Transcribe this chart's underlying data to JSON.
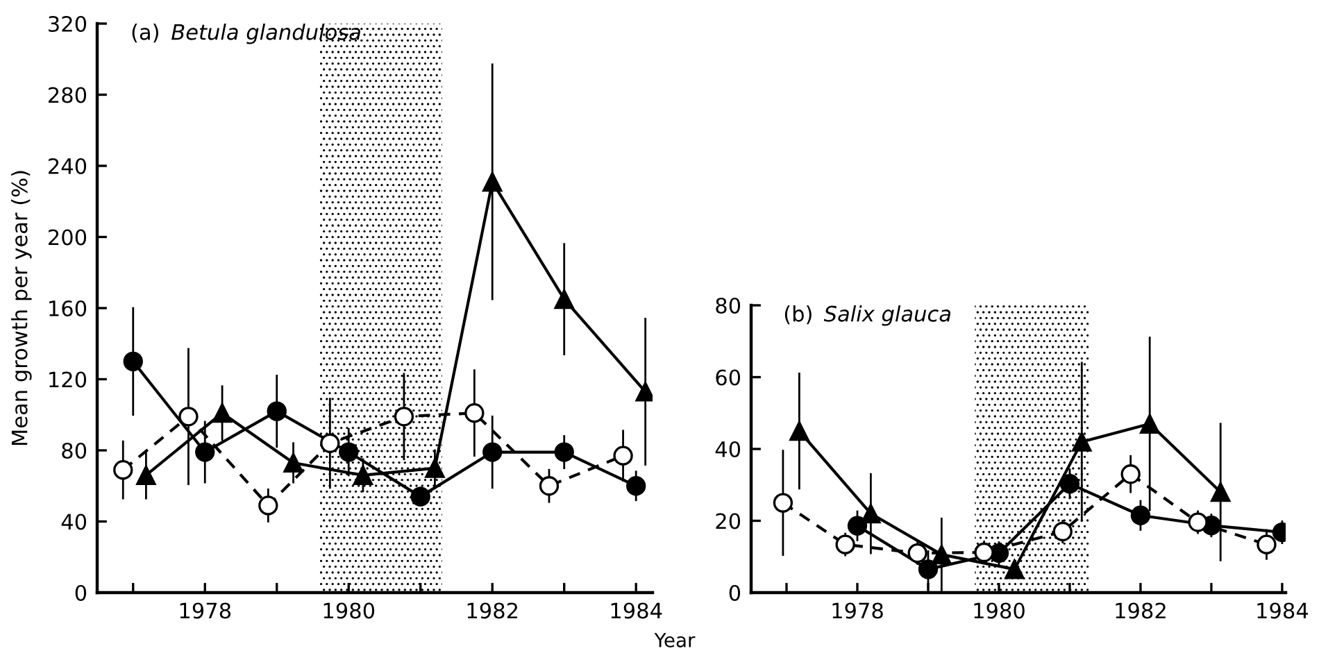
{
  "chart_data": [
    {
      "type": "line",
      "title": "(a) Betula glandulosa",
      "ylabel": "Mean growth per year (%)",
      "xlabel": "Year",
      "xlim": [
        1976.5,
        1984.23
      ],
      "ylim": [
        0,
        320
      ],
      "xticks": [
        {
          "value": 1977,
          "label": null
        },
        1978,
        {
          "value": 1979,
          "label": null
        },
        1980,
        {
          "value": 1981,
          "label": null
        },
        1982,
        {
          "value": 1983,
          "label": null
        },
        1984
      ],
      "yticks": [
        0,
        40,
        80,
        120,
        160,
        200,
        240,
        280,
        320
      ],
      "grid": false,
      "legend": false,
      "bands": [
        {
          "axis": "x",
          "from": 1979.6,
          "to": 1981.3,
          "color": "#000000"
        }
      ],
      "series": [
        {
          "color": "#000000",
          "marker": "circle",
          "line_style": "solid",
          "x": [
            1977,
            1978,
            1979,
            1980,
            1981,
            1982,
            1983,
            1984
          ],
          "values": [
            130,
            79,
            102,
            79,
            54,
            79,
            79,
            60
          ],
          "errors": [
            30,
            17,
            20,
            13,
            5,
            20,
            9,
            8
          ]
        },
        {
          "color": "#ffffff",
          "marker": "circle",
          "line_style": "dashed",
          "x": [
            1976.86,
            1977.77,
            1978.88,
            1979.74,
            1980.77,
            1981.75,
            1982.79,
            1983.82
          ],
          "values": [
            69,
            99,
            49,
            84,
            99,
            101,
            60,
            77
          ],
          "errors": [
            16,
            38,
            9,
            25,
            24,
            24,
            9,
            14
          ]
        },
        {
          "color": "#000000",
          "marker": "triangle",
          "line_style": "solid",
          "x": [
            1977.18,
            1978.24,
            1979.23,
            1980.2,
            1981.2,
            1982,
            1983,
            1984.13
          ],
          "values": [
            66,
            101,
            73,
            66,
            70,
            231,
            165,
            113
          ],
          "errors": [
            13,
            15,
            11,
            9,
            10,
            66,
            31,
            41
          ]
        }
      ]
    },
    {
      "type": "line",
      "title": "(b) Salix glauca",
      "xlim": [
        1976.5,
        1984.05
      ],
      "ylim": [
        0,
        80
      ],
      "xticks": [
        {
          "value": 1977,
          "label": null
        },
        1978,
        {
          "value": 1979,
          "label": null
        },
        1980,
        {
          "value": 1981,
          "label": null
        },
        1982,
        {
          "value": 1983,
          "label": null
        },
        1984
      ],
      "yticks": [
        0,
        20,
        40,
        60,
        80
      ],
      "grid": false,
      "legend": false,
      "bands": [
        {
          "axis": "x",
          "from": 1979.66,
          "to": 1981.27,
          "color": "#000000"
        }
      ],
      "series": [
        {
          "color": "#000000",
          "marker": "circle",
          "line_style": "solid",
          "x": [
            1978,
            1979,
            1980,
            1981,
            1982,
            1983,
            1984
          ],
          "values": [
            18.6,
            6.5,
            11,
            30.3,
            21.5,
            18.7,
            16.8
          ],
          "errors": [
            4,
            5,
            3,
            4,
            4,
            3,
            3
          ]
        },
        {
          "color": "#ffffff",
          "marker": "circle",
          "line_style": "dashed",
          "x": [
            1976.95,
            1977.83,
            1978.85,
            1979.79,
            1980.9,
            1981.86,
            1982.81,
            1983.78
          ],
          "values": [
            25,
            13.4,
            11,
            11.2,
            17,
            33,
            19.6,
            13.4
          ],
          "errors": [
            14.5,
            3,
            3,
            3,
            3,
            5,
            3,
            4
          ]
        },
        {
          "color": "#000000",
          "marker": "triangle",
          "line_style": "solid",
          "x": [
            1977.18,
            1978.19,
            1979.19,
            1980.22,
            1981.17,
            1982.13,
            1983.13
          ],
          "values": [
            45,
            22,
            10.6,
            6.5,
            42,
            47,
            28
          ],
          "errors": [
            16,
            11,
            10,
            2,
            22,
            24,
            19
          ]
        }
      ]
    }
  ]
}
